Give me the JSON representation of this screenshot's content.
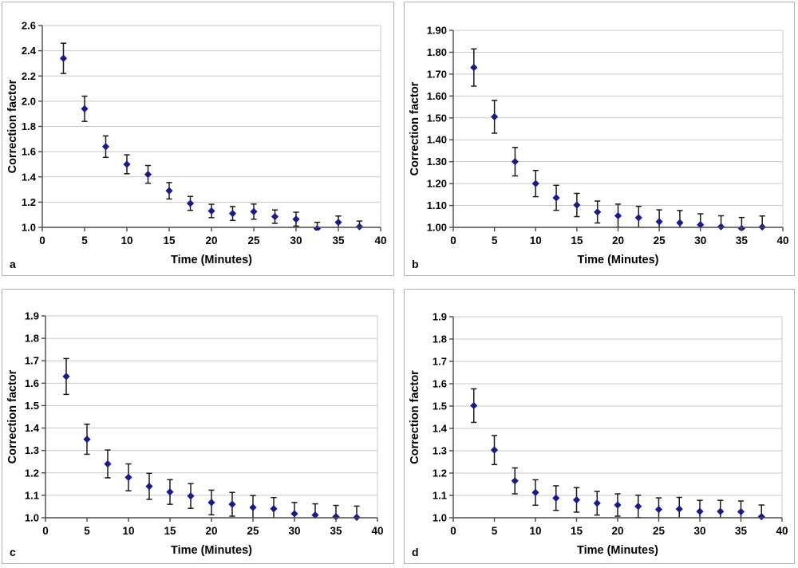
{
  "figure": {
    "background": "#ffffff",
    "panel_border_color": "#b3b3b3",
    "gridline_color": "#c9c9c9",
    "axis_color": "#4a4a4a",
    "error_bar_color": "#1a1a1a",
    "marker_color": "#1a1a8c",
    "text_color": "#000000"
  },
  "chart_data": [
    {
      "type": "scatter",
      "panel_label": "a",
      "title": "",
      "xlabel": "Time (Minutes)",
      "ylabel": "Correction factor",
      "marker_shape": "diamond",
      "error_bars": "vertical",
      "grid": "horizontal",
      "legend": "none",
      "xlim": [
        0,
        40
      ],
      "ylim": [
        1.0,
        2.6
      ],
      "x_tick_labels": [
        "0",
        "5",
        "10",
        "15",
        "20",
        "25",
        "30",
        "35",
        "40"
      ],
      "y_tick_labels": [
        "1.0",
        "1.2",
        "1.4",
        "1.6",
        "1.8",
        "2.0",
        "2.2",
        "2.4",
        "2.6"
      ],
      "x": [
        2.5,
        5,
        7.5,
        10,
        12.5,
        15,
        17.5,
        20,
        22.5,
        25,
        27.5,
        30,
        32.5,
        35,
        37.5
      ],
      "y": [
        2.34,
        1.94,
        1.64,
        1.5,
        1.42,
        1.29,
        1.19,
        1.13,
        1.11,
        1.125,
        1.085,
        1.065,
        0.99,
        1.04,
        1.005
      ],
      "yerr": [
        0.12,
        0.1,
        0.085,
        0.075,
        0.07,
        0.065,
        0.055,
        0.053,
        0.055,
        0.06,
        0.053,
        0.055,
        0.05,
        0.05,
        0.045
      ]
    },
    {
      "type": "scatter",
      "panel_label": "b",
      "title": "",
      "xlabel": "Time (Minutes)",
      "ylabel": "Correction factor",
      "marker_shape": "diamond",
      "error_bars": "vertical",
      "grid": "horizontal",
      "legend": "none",
      "xlim": [
        0,
        40
      ],
      "ylim": [
        1.0,
        1.9
      ],
      "x_tick_labels": [
        "0",
        "5",
        "10",
        "15",
        "20",
        "25",
        "30",
        "35",
        "40"
      ],
      "y_tick_labels": [
        "1.00",
        "1.10",
        "1.20",
        "1.30",
        "1.40",
        "1.50",
        "1.60",
        "1.70",
        "1.80",
        "1.90"
      ],
      "x": [
        2.5,
        5,
        7.5,
        10,
        12.5,
        15,
        17.5,
        20,
        22.5,
        25,
        27.5,
        30,
        32.5,
        35,
        37.5
      ],
      "y": [
        1.73,
        1.505,
        1.3,
        1.2,
        1.135,
        1.102,
        1.07,
        1.053,
        1.044,
        1.026,
        1.021,
        1.012,
        1.003,
        0.995,
        1.002
      ],
      "yerr": [
        0.085,
        0.075,
        0.065,
        0.06,
        0.057,
        0.053,
        0.05,
        0.053,
        0.052,
        0.054,
        0.056,
        0.05,
        0.05,
        0.05,
        0.05
      ]
    },
    {
      "type": "scatter",
      "panel_label": "c",
      "title": "",
      "xlabel": "Time (Minutes)",
      "ylabel": "Correction factor",
      "marker_shape": "diamond",
      "error_bars": "vertical",
      "grid": "horizontal",
      "legend": "none",
      "xlim": [
        0,
        40
      ],
      "ylim": [
        1.0,
        1.9
      ],
      "x_tick_labels": [
        "0",
        "5",
        "10",
        "15",
        "20",
        "25",
        "30",
        "35",
        "40"
      ],
      "y_tick_labels": [
        "1.0",
        "1.1",
        "1.2",
        "1.3",
        "1.4",
        "1.5",
        "1.6",
        "1.7",
        "1.8",
        "1.9"
      ],
      "x": [
        2.5,
        5,
        7.5,
        10,
        12.5,
        15,
        17.5,
        20,
        22.5,
        25,
        27.5,
        30,
        32.5,
        35,
        37.5
      ],
      "y": [
        1.63,
        1.35,
        1.24,
        1.18,
        1.14,
        1.115,
        1.097,
        1.068,
        1.06,
        1.046,
        1.04,
        1.018,
        1.012,
        1.005,
        1.002
      ],
      "yerr": [
        0.08,
        0.067,
        0.062,
        0.06,
        0.058,
        0.055,
        0.055,
        0.055,
        0.053,
        0.053,
        0.05,
        0.05,
        0.05,
        0.05,
        0.05
      ]
    },
    {
      "type": "scatter",
      "panel_label": "d",
      "title": "",
      "xlabel": "Time (Minutes)",
      "ylabel": "Correction factor",
      "marker_shape": "diamond",
      "error_bars": "vertical",
      "grid": "horizontal",
      "legend": "none",
      "xlim": [
        0,
        40
      ],
      "ylim": [
        1.0,
        1.9
      ],
      "x_tick_labels": [
        "0",
        "5",
        "10",
        "15",
        "20",
        "25",
        "30",
        "35",
        "40"
      ],
      "y_tick_labels": [
        "1.0",
        "1.1",
        "1.2",
        "1.3",
        "1.4",
        "1.5",
        "1.6",
        "1.7",
        "1.8",
        "1.9"
      ],
      "x": [
        2.5,
        5,
        7.5,
        10,
        12.5,
        15,
        17.5,
        20,
        22.5,
        25,
        27.5,
        30,
        32.5,
        35,
        37.5
      ],
      "y": [
        1.502,
        1.303,
        1.165,
        1.113,
        1.088,
        1.08,
        1.065,
        1.057,
        1.051,
        1.037,
        1.039,
        1.028,
        1.028,
        1.027,
        1.005
      ],
      "yerr": [
        0.075,
        0.065,
        0.058,
        0.057,
        0.055,
        0.055,
        0.053,
        0.05,
        0.05,
        0.052,
        0.052,
        0.05,
        0.05,
        0.048,
        0.052
      ]
    }
  ]
}
